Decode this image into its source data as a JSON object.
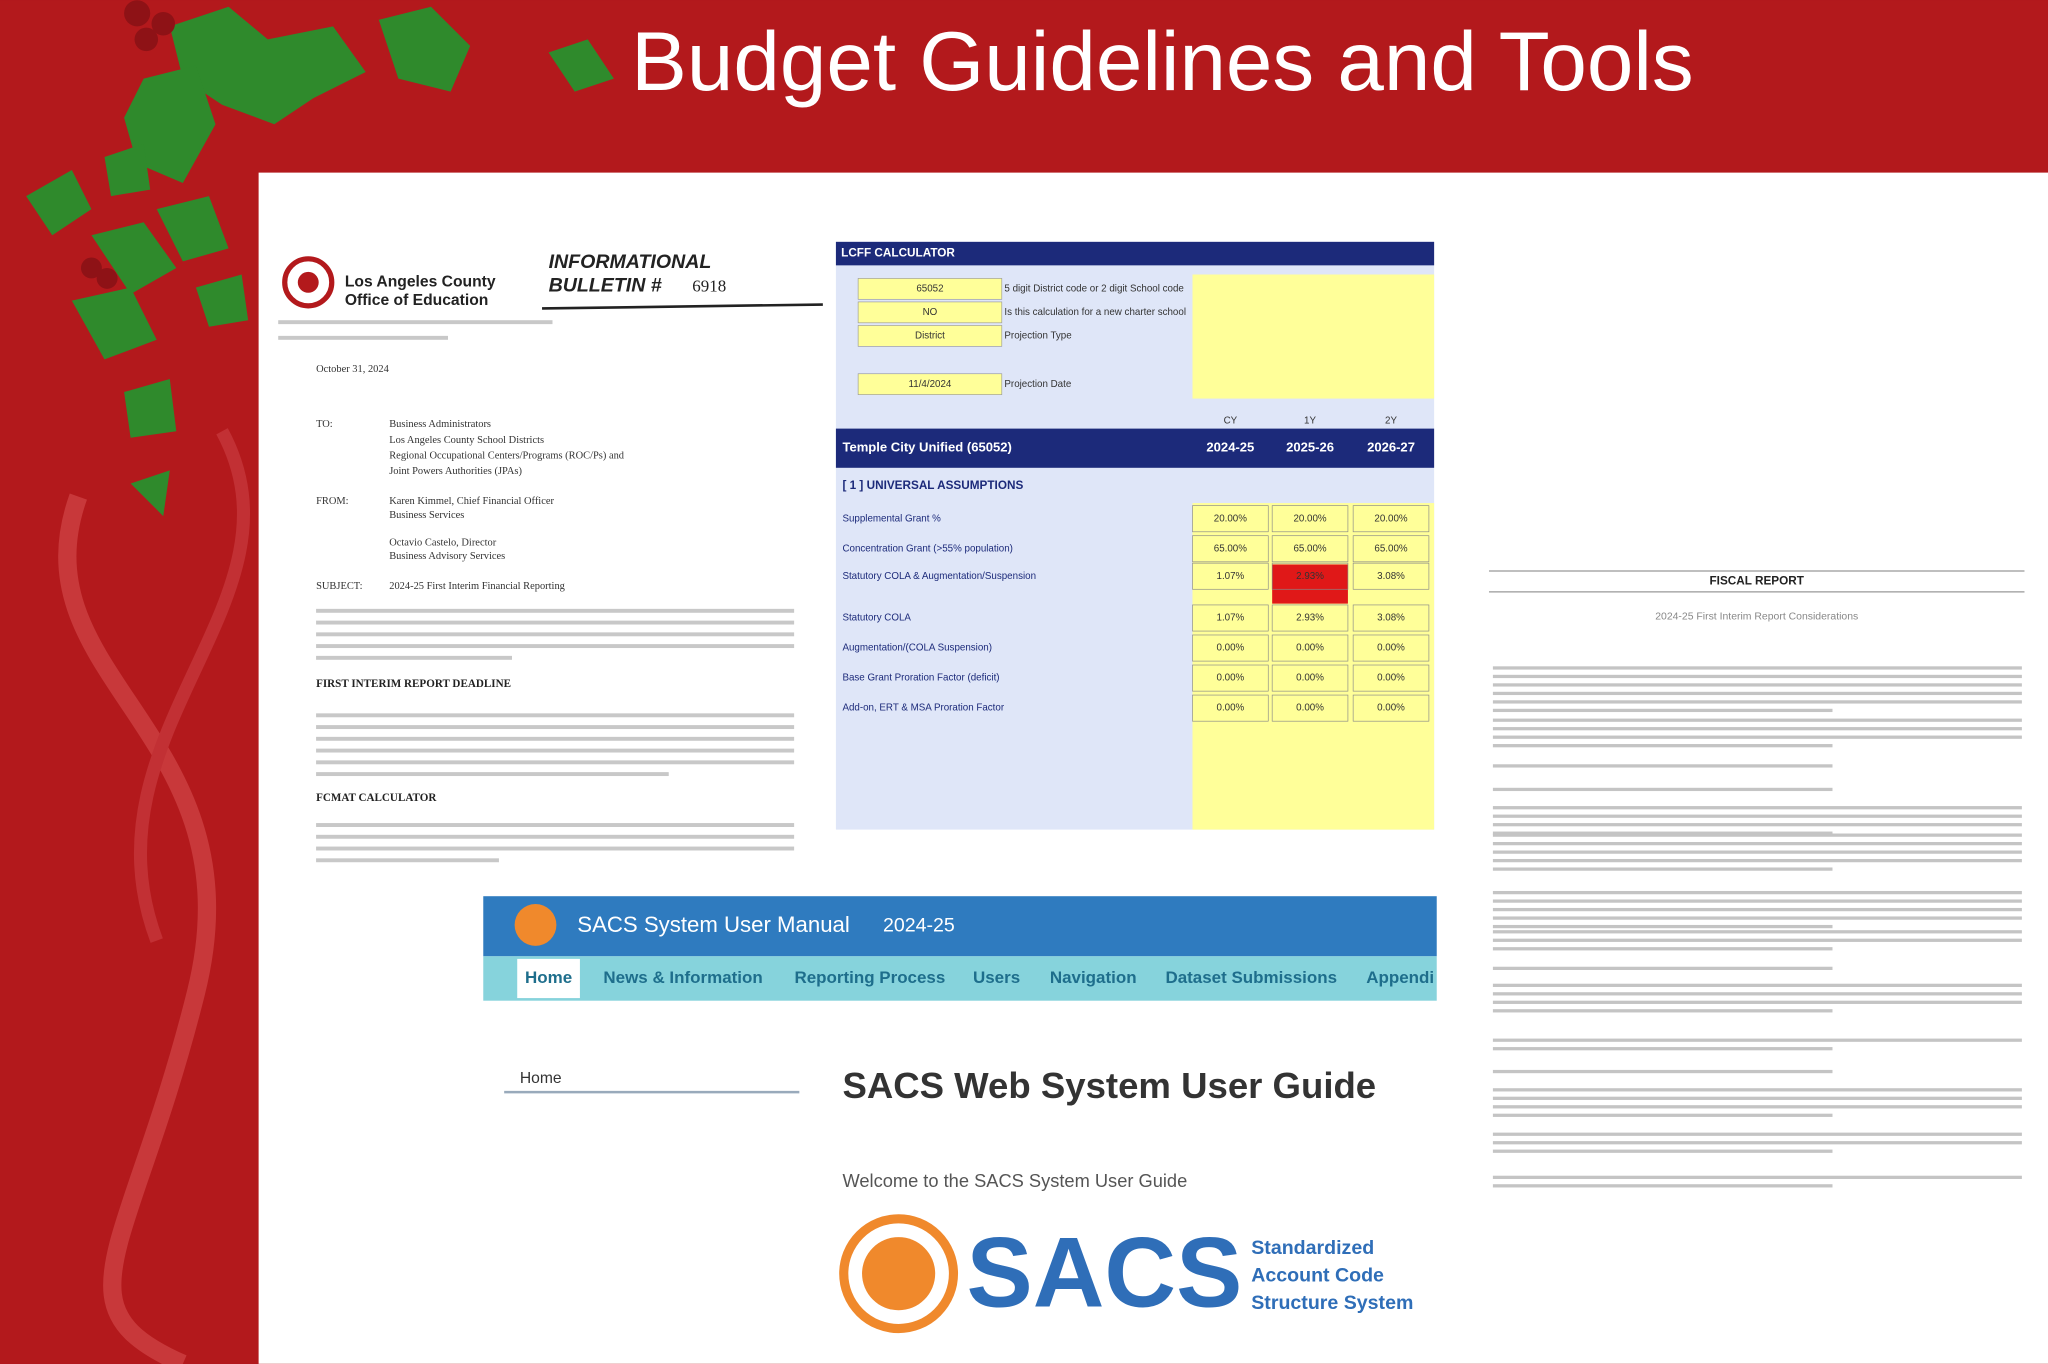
{
  "title": "Budget Guidelines and Tools",
  "bulletin": {
    "org": [
      "Los Angeles County",
      "Office of Education"
    ],
    "heading": "INFORMATIONAL",
    "number_label": "BULLETIN #",
    "number": "6918",
    "date": "October 31, 2024",
    "to_label": "TO:",
    "to": [
      "Business Administrators",
      "Los Angeles County School Districts",
      "Regional Occupational Centers/Programs (ROC/Ps) and",
      "Joint Powers Authorities (JPAs)"
    ],
    "from_label": "FROM:",
    "from": [
      "Karen Kimmel, Chief Financial Officer",
      "Business Services",
      "",
      "Octavio Castelo, Director",
      "Business Advisory Services"
    ],
    "subject_label": "SUBJECT:",
    "subject": "2024-25 First Interim Financial Reporting",
    "sections": [
      "FIRST INTERIM REPORT DEADLINE",
      "FCMAT CALCULATOR"
    ]
  },
  "lcff": {
    "title": "LCFF CALCULATOR",
    "inputs": [
      {
        "value": "65052",
        "label": "5 digit District code or 2 digit School code"
      },
      {
        "value": "NO",
        "label": "Is this calculation for a new charter school"
      },
      {
        "value": "District",
        "label": "Projection Type"
      },
      {
        "value": "11/4/2024",
        "label": "Projection Date"
      }
    ],
    "district": "Temple City Unified (65052)",
    "year_codes": [
      "CY",
      "1Y",
      "2Y"
    ],
    "years": [
      "2024-25",
      "2025-26",
      "2026-27"
    ],
    "section": "[ 1 ] UNIVERSAL ASSUMPTIONS",
    "rows": [
      {
        "label": "Supplemental Grant %",
        "values": [
          "20.00%",
          "20.00%",
          "20.00%"
        ]
      },
      {
        "label": "Concentration Grant (>55% population)",
        "values": [
          "65.00%",
          "65.00%",
          "65.00%"
        ]
      },
      {
        "label": "Statutory COLA & Augmentation/Suspension",
        "values": [
          "1.07%",
          "2.93%",
          "3.08%"
        ]
      },
      {
        "label": "Statutory COLA",
        "values": [
          "1.07%",
          "2.93%",
          "3.08%"
        ]
      },
      {
        "label": "Augmentation/(COLA Suspension)",
        "values": [
          "0.00%",
          "0.00%",
          "0.00%"
        ]
      },
      {
        "label": "Base Grant Proration Factor (deficit)",
        "values": [
          "0.00%",
          "0.00%",
          "0.00%"
        ]
      },
      {
        "label": "Add-on, ERT & MSA Proration Factor",
        "values": [
          "0.00%",
          "0.00%",
          "0.00%"
        ]
      }
    ]
  },
  "manual": {
    "title": "SACS System User Manual",
    "version": "2024-25",
    "nav": [
      "Home",
      "News & Information",
      "Reporting Process",
      "Users",
      "Navigation",
      "Dataset Submissions",
      "Appendi"
    ],
    "breadcrumb": "Home",
    "heading": "SACS Web System User Guide",
    "welcome": "Welcome to the SACS System User Guide",
    "logo": "SACS",
    "logo_sub": [
      "Standardized",
      "Account Code",
      "Structure System"
    ]
  },
  "report": {
    "title": "FISCAL REPORT",
    "subtitle": "2024-25 First Interim Report Considerations"
  }
}
